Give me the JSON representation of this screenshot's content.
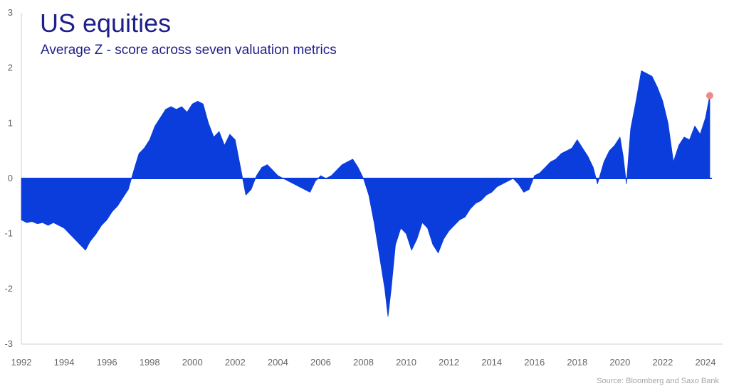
{
  "header": {
    "title": "US equities",
    "subtitle": "Average Z - score across seven valuation metrics"
  },
  "footer": {
    "source": "Source: Bloomberg and Saxo Bank"
  },
  "colors": {
    "fill": "#0a3ddc",
    "marker": "#f08a8a",
    "axis": "#cfcfcf",
    "tick_text": "#666666",
    "title": "#1f1f8a"
  },
  "chart_data": {
    "type": "area",
    "title": "US equities",
    "subtitle": "Average Z - score across seven valuation metrics",
    "xlabel": "",
    "ylabel": "",
    "xlim": [
      1992,
      2024.3
    ],
    "ylim": [
      -3,
      3
    ],
    "x_ticks": [
      "1992",
      "1994",
      "1996",
      "1998",
      "2000",
      "2002",
      "2004",
      "2006",
      "2008",
      "2010",
      "2012",
      "2014",
      "2016",
      "2018",
      "2020",
      "2022",
      "2024"
    ],
    "y_ticks": [
      "3",
      "2",
      "1",
      "0",
      "-1",
      "-2",
      "-3"
    ],
    "grid": false,
    "legend": null,
    "series": [
      {
        "x": [
          1992.0,
          1992.25,
          1992.5,
          1992.75,
          1993.0,
          1993.25,
          1993.5,
          1993.75,
          1994.0,
          1994.25,
          1994.5,
          1994.75,
          1995.0,
          1995.2,
          1995.5,
          1995.75,
          1996.0,
          1996.25,
          1996.5,
          1996.75,
          1997.0,
          1997.15,
          1997.3,
          1997.5,
          1997.75,
          1998.0,
          1998.25,
          1998.5,
          1998.75,
          1999.0,
          1999.25,
          1999.5,
          1999.75,
          2000.0,
          2000.25,
          2000.5,
          2000.75,
          2001.0,
          2001.25,
          2001.5,
          2001.75,
          2002.0,
          2002.25,
          2002.5,
          2002.75,
          2003.0,
          2003.25,
          2003.5,
          2003.75,
          2004.0,
          2004.25,
          2004.5,
          2004.75,
          2005.0,
          2005.25,
          2005.5,
          2005.75,
          2006.0,
          2006.25,
          2006.5,
          2006.75,
          2007.0,
          2007.25,
          2007.5,
          2007.75,
          2008.0,
          2008.25,
          2008.5,
          2008.75,
          2009.0,
          2009.15,
          2009.3,
          2009.5,
          2009.75,
          2010.0,
          2010.25,
          2010.5,
          2010.75,
          2011.0,
          2011.25,
          2011.5,
          2011.75,
          2012.0,
          2012.25,
          2012.5,
          2012.75,
          2013.0,
          2013.25,
          2013.5,
          2013.75,
          2014.0,
          2014.25,
          2014.5,
          2014.75,
          2015.0,
          2015.25,
          2015.5,
          2015.75,
          2016.0,
          2016.25,
          2016.5,
          2016.75,
          2017.0,
          2017.25,
          2017.5,
          2017.75,
          2018.0,
          2018.25,
          2018.5,
          2018.75,
          2018.95,
          2019.25,
          2019.5,
          2019.75,
          2020.0,
          2020.15,
          2020.3,
          2020.5,
          2020.75,
          2021.0,
          2021.25,
          2021.5,
          2021.75,
          2022.0,
          2022.25,
          2022.5,
          2022.75,
          2023.0,
          2023.25,
          2023.5,
          2023.75,
          2024.0,
          2024.2
        ],
        "y": [
          -0.75,
          -0.8,
          -0.78,
          -0.82,
          -0.8,
          -0.85,
          -0.8,
          -0.85,
          -0.9,
          -1.0,
          -1.1,
          -1.2,
          -1.3,
          -1.15,
          -1.0,
          -0.85,
          -0.75,
          -0.6,
          -0.5,
          -0.35,
          -0.2,
          0.0,
          0.2,
          0.45,
          0.55,
          0.7,
          0.95,
          1.1,
          1.25,
          1.3,
          1.25,
          1.3,
          1.2,
          1.35,
          1.4,
          1.35,
          1.0,
          0.75,
          0.85,
          0.6,
          0.8,
          0.7,
          0.2,
          -0.3,
          -0.2,
          0.05,
          0.2,
          0.25,
          0.15,
          0.05,
          0.0,
          -0.05,
          -0.1,
          -0.15,
          -0.2,
          -0.25,
          -0.05,
          0.05,
          0.0,
          0.05,
          0.15,
          0.25,
          0.3,
          0.35,
          0.2,
          0.0,
          -0.3,
          -0.8,
          -1.4,
          -2.0,
          -2.5,
          -2.0,
          -1.2,
          -0.9,
          -1.0,
          -1.3,
          -1.1,
          -0.8,
          -0.9,
          -1.2,
          -1.35,
          -1.1,
          -0.95,
          -0.85,
          -0.75,
          -0.7,
          -0.55,
          -0.45,
          -0.4,
          -0.3,
          -0.25,
          -0.15,
          -0.1,
          -0.05,
          0.0,
          -0.1,
          -0.25,
          -0.2,
          0.05,
          0.1,
          0.2,
          0.3,
          0.35,
          0.45,
          0.5,
          0.55,
          0.7,
          0.55,
          0.4,
          0.2,
          -0.1,
          0.3,
          0.5,
          0.6,
          0.75,
          0.4,
          -0.1,
          0.9,
          1.4,
          1.95,
          1.9,
          1.85,
          1.65,
          1.4,
          1.0,
          0.3,
          0.6,
          0.75,
          0.7,
          0.95,
          0.8,
          1.1,
          1.5
        ]
      }
    ],
    "last_point": {
      "x": 2024.2,
      "y": 1.5
    }
  }
}
